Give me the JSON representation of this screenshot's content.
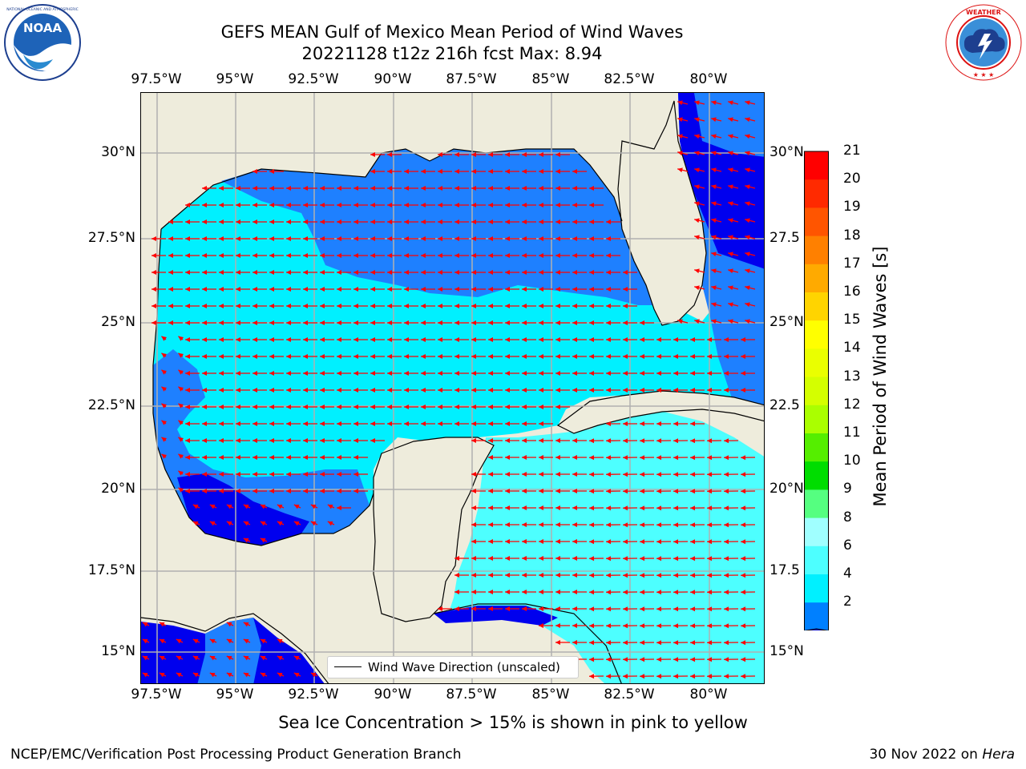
{
  "title_line1": "GEFS MEAN Gulf of Mexico Mean Period of Wind Waves",
  "title_line2": "20221128 t12z 216h fcst   Max: 8.94",
  "logos": {
    "left": {
      "name": "NOARA",
      "ring_text": "NATIONAL OCEANIC AND ATMOSPHERIC ADMINISTRATION · U.S. DEPARTMENT OF COMMERCE",
      "text": "NOAA"
    },
    "right": {
      "name": "National Weather Service",
      "ring_text": "NATIONAL WEATHER SERVICE"
    }
  },
  "lon_labels": [
    "97.5°W",
    "95°W",
    "92.5°W",
    "90°W",
    "87.5°W",
    "85°W",
    "82.5°W",
    "80°W"
  ],
  "lat_labels_left": [
    "30°N",
    "27.5°N",
    "25°N",
    "22.5°N",
    "20°N",
    "17.5°N",
    "15°N"
  ],
  "lat_labels_right": [
    "30°N",
    "27.5",
    "25°N",
    "22.5",
    "20°N",
    "17.5",
    "15°N"
  ],
  "legend_label": "Wind Wave Direction (unscaled)",
  "colorbar": {
    "label": "Mean Period of Wind Waves [s]",
    "ticks": [
      "21",
      "20",
      "19",
      "18",
      "17",
      "16",
      "15",
      "14",
      "13",
      "12",
      "11",
      "10",
      "9",
      "8",
      "6",
      "4",
      "2"
    ],
    "colors": [
      "#ff0000",
      "#ff2a00",
      "#ff5500",
      "#ff8000",
      "#ffaa00",
      "#ffd400",
      "#ffff00",
      "#eaff00",
      "#d4ff00",
      "#aaff00",
      "#55ee00",
      "#00dd00",
      "#55ff80",
      "#a0ffff",
      "#4dffff",
      "#00f0ff",
      "#0080ff"
    ],
    "extend_color": "#0000ee"
  },
  "map_colors": {
    "land": "#eeecdc",
    "sea_light": "#00f0ff",
    "sea_mid": "#1e80ff",
    "sea_deep": "#0000ee",
    "sea_pale": "#4dffff",
    "grid": "#b0b0b0",
    "arrow": "#ff0000"
  },
  "note": "Sea Ice Concentration > 15% is shown in pink to yellow",
  "credit": "NCEP/EMC/Verification Post Processing Product Generation Branch",
  "stamp_date": "30 Nov 2022 on ",
  "stamp_machine": "Hera"
}
